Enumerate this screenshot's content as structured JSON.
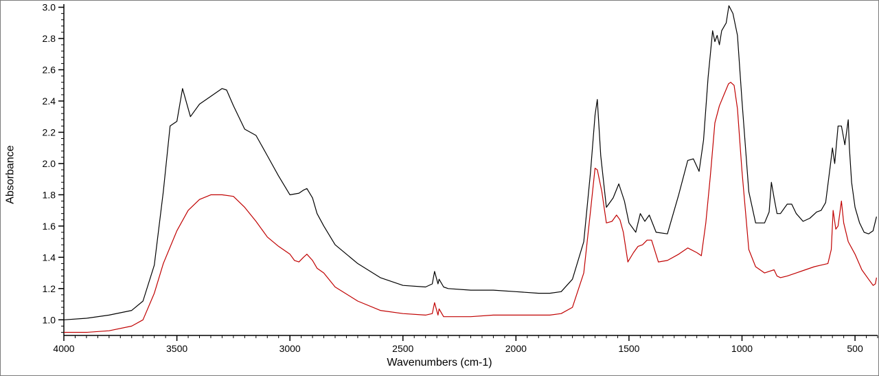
{
  "chart_data": {
    "type": "line",
    "xlabel": "Wavenumbers (cm-1)",
    "ylabel": "Absorbance",
    "xlim": [
      4000,
      400
    ],
    "ylim": [
      0.9,
      3.02
    ],
    "xticks": [
      4000,
      3500,
      3000,
      2500,
      2000,
      1500,
      1000,
      500
    ],
    "yticks": [
      1.0,
      1.2,
      1.4,
      1.6,
      1.8,
      2.0,
      2.2,
      2.4,
      2.6,
      2.8,
      3.0
    ],
    "grid": false,
    "series": [
      {
        "color": "#000000",
        "x": [
          4000,
          3900,
          3800,
          3700,
          3650,
          3600,
          3560,
          3530,
          3500,
          3475,
          3440,
          3400,
          3350,
          3300,
          3280,
          3250,
          3200,
          3150,
          3100,
          3050,
          3000,
          2960,
          2940,
          2925,
          2900,
          2880,
          2850,
          2800,
          2700,
          2600,
          2500,
          2400,
          2370,
          2360,
          2345,
          2340,
          2320,
          2300,
          2200,
          2100,
          2000,
          1900,
          1850,
          1800,
          1750,
          1700,
          1670,
          1650,
          1640,
          1625,
          1600,
          1570,
          1545,
          1520,
          1500,
          1470,
          1450,
          1430,
          1410,
          1380,
          1330,
          1280,
          1240,
          1215,
          1190,
          1170,
          1150,
          1130,
          1120,
          1110,
          1100,
          1090,
          1070,
          1058,
          1040,
          1020,
          1000,
          970,
          940,
          900,
          880,
          870,
          858,
          845,
          830,
          800,
          780,
          760,
          730,
          700,
          670,
          650,
          630,
          610,
          600,
          590,
          575,
          560,
          545,
          530,
          525,
          515,
          500,
          480,
          460,
          440,
          420,
          405
        ],
        "y": [
          1.0,
          1.01,
          1.03,
          1.06,
          1.12,
          1.35,
          1.82,
          2.24,
          2.27,
          2.48,
          2.3,
          2.38,
          2.43,
          2.48,
          2.47,
          2.37,
          2.22,
          2.18,
          2.05,
          1.92,
          1.8,
          1.81,
          1.83,
          1.84,
          1.78,
          1.68,
          1.6,
          1.48,
          1.36,
          1.27,
          1.22,
          1.21,
          1.23,
          1.31,
          1.23,
          1.26,
          1.21,
          1.2,
          1.19,
          1.19,
          1.18,
          1.17,
          1.17,
          1.18,
          1.26,
          1.5,
          1.95,
          2.31,
          2.41,
          2.05,
          1.72,
          1.78,
          1.87,
          1.76,
          1.62,
          1.56,
          1.68,
          1.63,
          1.67,
          1.56,
          1.55,
          1.8,
          2.02,
          2.03,
          1.95,
          2.15,
          2.55,
          2.85,
          2.78,
          2.82,
          2.76,
          2.85,
          2.9,
          3.01,
          2.96,
          2.82,
          2.4,
          1.82,
          1.62,
          1.62,
          1.69,
          1.88,
          1.78,
          1.68,
          1.68,
          1.74,
          1.74,
          1.68,
          1.63,
          1.65,
          1.69,
          1.7,
          1.75,
          1.98,
          2.1,
          2.0,
          2.24,
          2.24,
          2.12,
          2.28,
          2.1,
          1.88,
          1.72,
          1.62,
          1.56,
          1.55,
          1.57,
          1.66
        ]
      },
      {
        "color": "#c00000",
        "x": [
          4000,
          3900,
          3800,
          3700,
          3650,
          3600,
          3560,
          3500,
          3450,
          3400,
          3350,
          3300,
          3250,
          3200,
          3150,
          3100,
          3050,
          3000,
          2980,
          2960,
          2940,
          2925,
          2900,
          2880,
          2850,
          2800,
          2700,
          2600,
          2500,
          2400,
          2370,
          2360,
          2345,
          2340,
          2320,
          2300,
          2200,
          2100,
          2000,
          1900,
          1850,
          1800,
          1750,
          1700,
          1670,
          1650,
          1640,
          1620,
          1600,
          1575,
          1555,
          1540,
          1525,
          1505,
          1480,
          1460,
          1440,
          1420,
          1400,
          1370,
          1330,
          1280,
          1240,
          1200,
          1180,
          1160,
          1140,
          1120,
          1100,
          1080,
          1060,
          1050,
          1035,
          1020,
          1000,
          970,
          940,
          900,
          880,
          858,
          845,
          830,
          800,
          760,
          720,
          680,
          650,
          620,
          605,
          597,
          585,
          575,
          560,
          550,
          530,
          500,
          470,
          440,
          420,
          410,
          405
        ],
        "y": [
          0.92,
          0.92,
          0.93,
          0.96,
          1.0,
          1.17,
          1.36,
          1.57,
          1.7,
          1.77,
          1.8,
          1.8,
          1.79,
          1.72,
          1.63,
          1.53,
          1.47,
          1.42,
          1.38,
          1.37,
          1.4,
          1.42,
          1.38,
          1.33,
          1.3,
          1.21,
          1.12,
          1.06,
          1.04,
          1.03,
          1.04,
          1.11,
          1.03,
          1.07,
          1.02,
          1.02,
          1.02,
          1.03,
          1.03,
          1.03,
          1.03,
          1.04,
          1.08,
          1.3,
          1.7,
          1.97,
          1.96,
          1.82,
          1.62,
          1.63,
          1.67,
          1.64,
          1.56,
          1.37,
          1.43,
          1.47,
          1.48,
          1.51,
          1.51,
          1.37,
          1.38,
          1.42,
          1.46,
          1.43,
          1.41,
          1.62,
          1.92,
          2.26,
          2.37,
          2.44,
          2.51,
          2.52,
          2.5,
          2.35,
          1.95,
          1.45,
          1.34,
          1.3,
          1.31,
          1.32,
          1.28,
          1.27,
          1.28,
          1.3,
          1.32,
          1.34,
          1.35,
          1.36,
          1.45,
          1.7,
          1.58,
          1.6,
          1.76,
          1.62,
          1.5,
          1.42,
          1.32,
          1.26,
          1.22,
          1.23,
          1.27
        ]
      }
    ]
  }
}
